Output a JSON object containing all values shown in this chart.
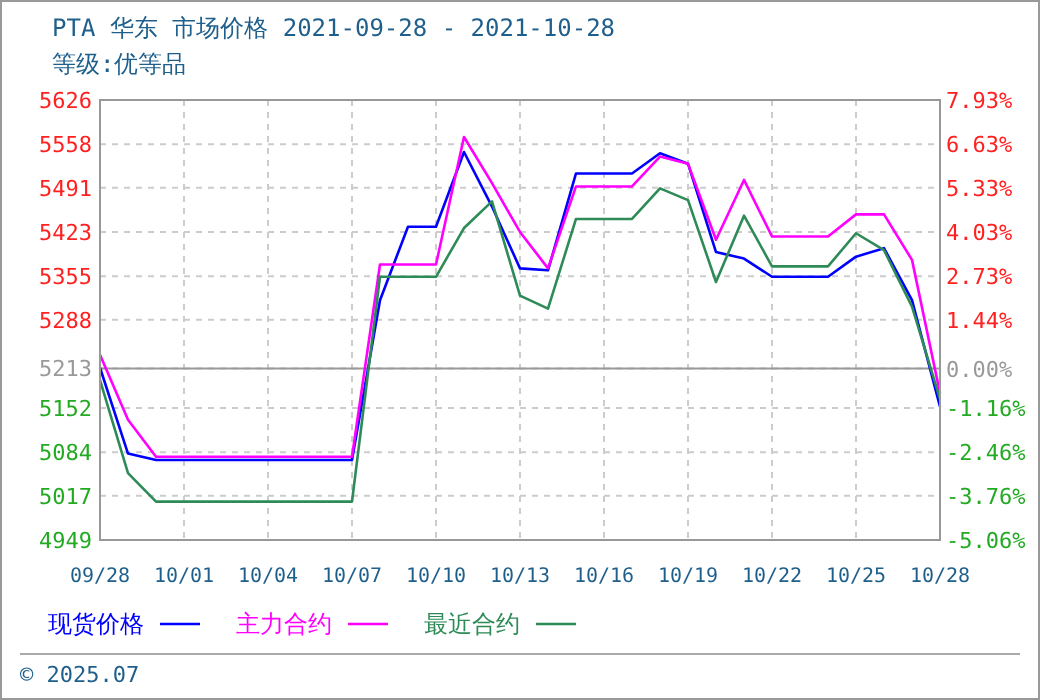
{
  "chart_data": {
    "type": "line",
    "title": "PTA 华东 市场价格 2021-09-28 - 2021-10-28",
    "subtitle": "等级:优等品",
    "annotations": [
      "© 2025.07"
    ],
    "x": [
      "2021-09-28",
      "2021-09-29",
      "2021-09-30",
      "2021-10-01",
      "2021-10-02",
      "2021-10-03",
      "2021-10-04",
      "2021-10-05",
      "2021-10-06",
      "2021-10-07",
      "2021-10-08",
      "2021-10-09",
      "2021-10-10",
      "2021-10-11",
      "2021-10-12",
      "2021-10-13",
      "2021-10-14",
      "2021-10-15",
      "2021-10-16",
      "2021-10-17",
      "2021-10-18",
      "2021-10-19",
      "2021-10-20",
      "2021-10-21",
      "2021-10-22",
      "2021-10-23",
      "2021-10-24",
      "2021-10-25",
      "2021-10-26",
      "2021-10-27",
      "2021-10-28"
    ],
    "series": [
      {
        "name": "现货价格",
        "color": "#0000ff",
        "values": [
          5214,
          5082,
          5072,
          5072,
          5072,
          5072,
          5072,
          5072,
          5072,
          5072,
          5318,
          5431,
          5431,
          5546,
          5462,
          5367,
          5364,
          5513,
          5513,
          5513,
          5544,
          5528,
          5392,
          5382,
          5354,
          5354,
          5354,
          5385,
          5398,
          5318,
          5154
        ]
      },
      {
        "name": "主力合约",
        "color": "#ff00ff",
        "values": [
          5234,
          5134,
          5077,
          5077,
          5077,
          5077,
          5077,
          5077,
          5077,
          5077,
          5373,
          5373,
          5373,
          5569,
          5498,
          5423,
          5367,
          5493,
          5493,
          5493,
          5539,
          5528,
          5411,
          5503,
          5416,
          5416,
          5416,
          5450,
          5450,
          5380,
          5175
        ]
      },
      {
        "name": "最近合约",
        "color": "#2e8b57",
        "values": [
          5195,
          5052,
          5008,
          5008,
          5008,
          5008,
          5008,
          5008,
          5008,
          5008,
          5354,
          5354,
          5354,
          5429,
          5470,
          5325,
          5305,
          5443,
          5443,
          5443,
          5490,
          5472,
          5346,
          5448,
          5370,
          5370,
          5370,
          5421,
          5395,
          5308,
          5166
        ]
      }
    ],
    "xlim": [
      "2021-09-28",
      "2021-10-28"
    ],
    "xticks": [
      {
        "value": "2021-09-28",
        "label": "09/28"
      },
      {
        "value": "2021-10-01",
        "label": "10/01"
      },
      {
        "value": "2021-10-04",
        "label": "10/04"
      },
      {
        "value": "2021-10-07",
        "label": "10/07"
      },
      {
        "value": "2021-10-10",
        "label": "10/10"
      },
      {
        "value": "2021-10-13",
        "label": "10/13"
      },
      {
        "value": "2021-10-16",
        "label": "10/16"
      },
      {
        "value": "2021-10-19",
        "label": "10/19"
      },
      {
        "value": "2021-10-22",
        "label": "10/22"
      },
      {
        "value": "2021-10-25",
        "label": "10/25"
      },
      {
        "value": "2021-10-28",
        "label": "10/28"
      }
    ],
    "ylim": [
      4949,
      5626
    ],
    "yticks": [
      4949,
      5017,
      5084,
      5152,
      5213,
      5288,
      5355,
      5423,
      5491,
      5558,
      5626
    ],
    "y2lim": [
      -5.06,
      7.93
    ],
    "y2ticks": [
      {
        "value": -5.06,
        "label": "-5.06%"
      },
      {
        "value": -3.76,
        "label": "-3.76%"
      },
      {
        "value": -2.46,
        "label": "-2.46%"
      },
      {
        "value": -1.16,
        "label": "-1.16%"
      },
      {
        "value": 0,
        "label": "0.00%"
      },
      {
        "value": 1.44,
        "label": "1.44%"
      },
      {
        "value": 2.73,
        "label": "2.73%"
      },
      {
        "value": 4.03,
        "label": "4.03%"
      },
      {
        "value": 5.33,
        "label": "5.33%"
      },
      {
        "value": 6.63,
        "label": "6.63%"
      },
      {
        "value": 7.93,
        "label": "7.93%"
      }
    ],
    "grid": true,
    "legend": "bottom",
    "line_style": "solid"
  }
}
